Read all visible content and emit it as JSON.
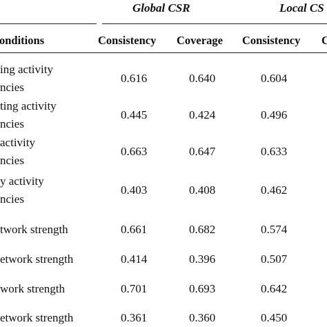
{
  "table": {
    "group_headers": [
      "Global CSR",
      "Local CS"
    ],
    "column_headers": [
      "onditions",
      "Consistency",
      "Coverage",
      "Consistency",
      "C"
    ],
    "rows": [
      {
        "condition": [
          "ing activity",
          "ncies"
        ],
        "values": [
          "0.616",
          "0.640",
          "0.604"
        ]
      },
      {
        "condition": [
          "ting activity",
          "ncies"
        ],
        "values": [
          "0.445",
          "0.424",
          "0.496"
        ]
      },
      {
        "condition": [
          "activity",
          "ncies"
        ],
        "values": [
          "0.663",
          "0.647",
          "0.633"
        ]
      },
      {
        "condition": [
          "y activity",
          "ncies"
        ],
        "values": [
          "0.403",
          "0.408",
          "0.462"
        ]
      },
      {
        "condition": [
          "twork strength"
        ],
        "values": [
          "0.661",
          "0.682",
          "0.574"
        ]
      },
      {
        "condition": [
          "etwork strength"
        ],
        "values": [
          "0.414",
          "0.396",
          "0.507"
        ]
      },
      {
        "condition": [
          "work strength"
        ],
        "values": [
          "0.701",
          "0.693",
          "0.642"
        ]
      },
      {
        "condition": [
          "etwork strength"
        ],
        "values": [
          "0.361",
          "0.360",
          "0.450"
        ]
      }
    ]
  }
}
